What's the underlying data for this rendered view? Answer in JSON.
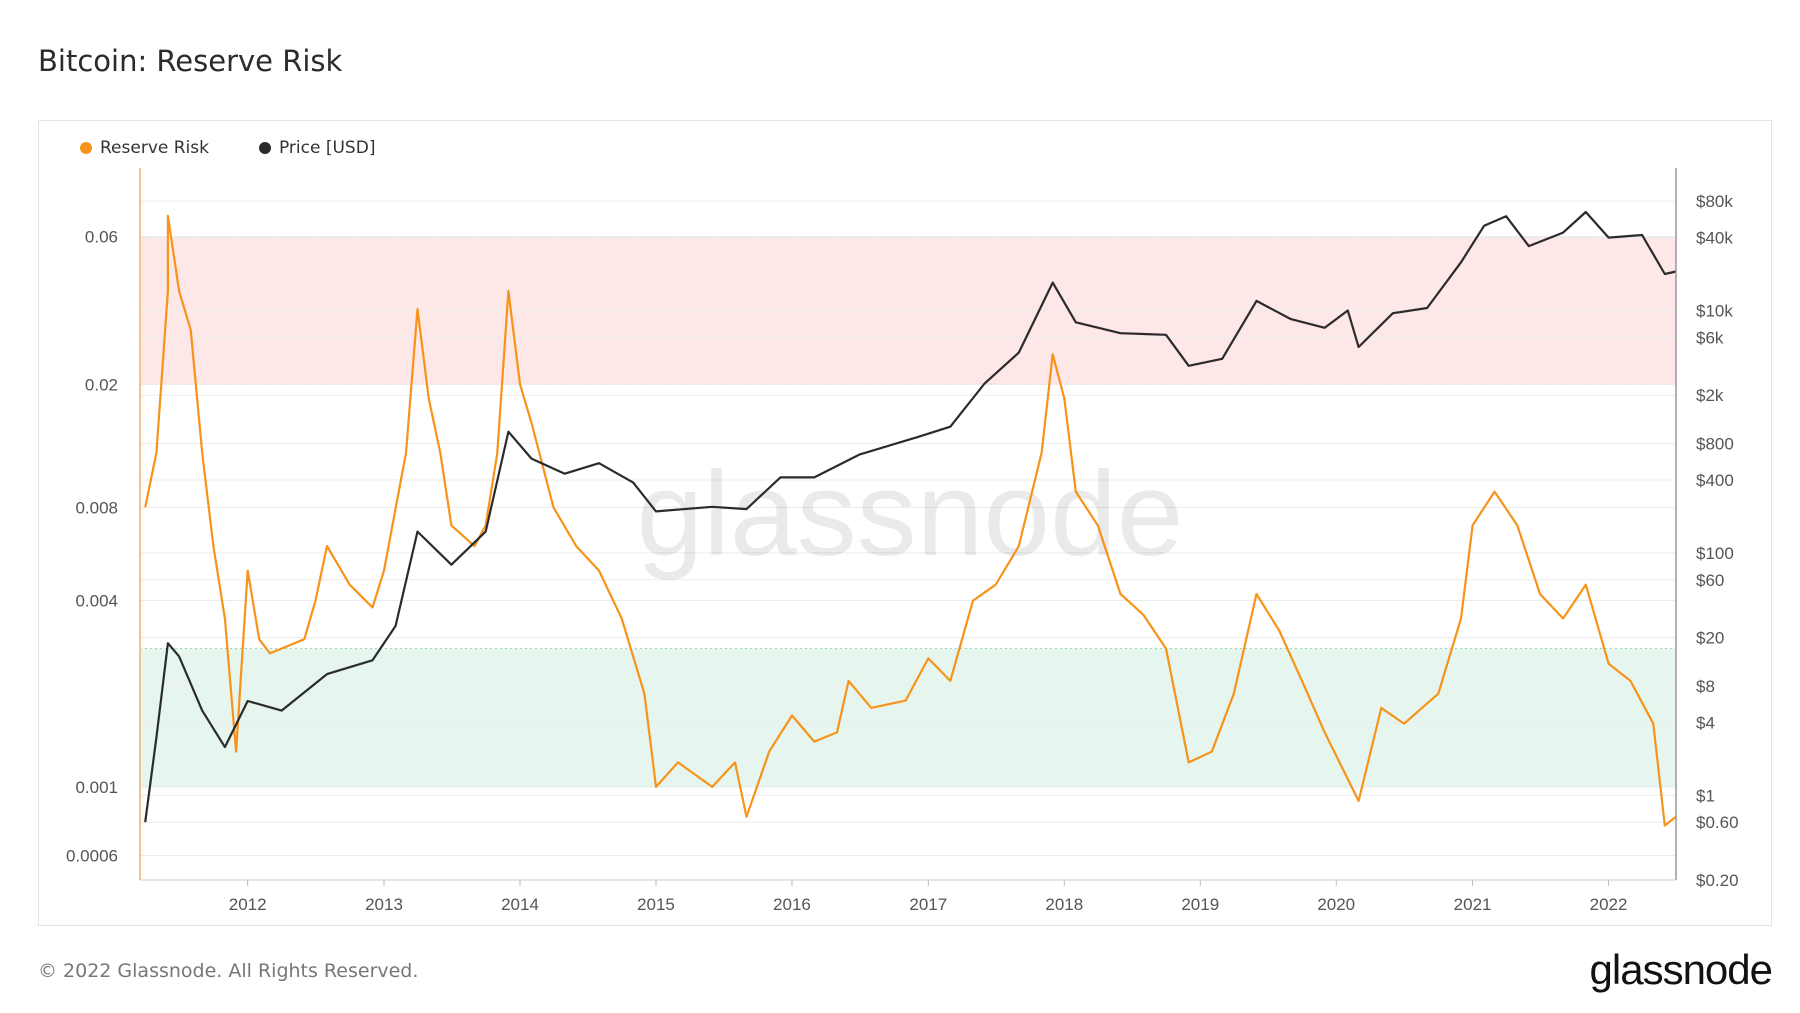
{
  "title": "Bitcoin: Reserve Risk",
  "footer": "© 2022 Glassnode. All Rights Reserved.",
  "logo": "glassnode",
  "watermark": "glassnode",
  "colors": {
    "reserve_risk": "#f7931a",
    "price": "#2b2b2b",
    "high_band": "#fde7e7",
    "low_band": "#e6f6ee",
    "grid": "#ececec"
  },
  "chart_data": {
    "type": "line",
    "title": "Bitcoin: Reserve Risk",
    "x_axis": {
      "ticks": [
        "2012",
        "2013",
        "2014",
        "2015",
        "2016",
        "2017",
        "2018",
        "2019",
        "2020",
        "2021",
        "2022"
      ],
      "range": [
        "2011-04",
        "2022-07"
      ]
    },
    "y_left": {
      "scale": "log",
      "ticks": [
        "0.06",
        "0.02",
        "0.008",
        "0.004",
        "0.001",
        "0.0006"
      ],
      "range": [
        0.0005,
        0.1
      ]
    },
    "y_right": {
      "scale": "log",
      "ticks": [
        "$80k",
        "$40k",
        "$10k",
        "$6k",
        "$2k",
        "$800",
        "$400",
        "$100",
        "$60",
        "$20",
        "$8",
        "$4",
        "$1",
        "$0.60",
        "$0.20"
      ],
      "range": [
        0.2,
        150000
      ]
    },
    "bands": [
      {
        "name": "high",
        "from": 0.02,
        "to": 0.06
      },
      {
        "name": "low",
        "from": 0.001,
        "to": 0.0028
      }
    ],
    "legend": {
      "position": "top-left"
    },
    "series": [
      {
        "name": "Reserve Risk",
        "axis": "left",
        "points": [
          [
            "2011-04",
            0.008
          ],
          [
            "2011-05",
            0.012
          ],
          [
            "2011-06",
            0.04
          ],
          [
            "2011-06",
            0.07
          ],
          [
            "2011-07",
            0.04
          ],
          [
            "2011-08",
            0.03
          ],
          [
            "2011-09",
            0.012
          ],
          [
            "2011-10",
            0.006
          ],
          [
            "2011-11",
            0.0035
          ],
          [
            "2011-12",
            0.0013
          ],
          [
            "2012-01",
            0.005
          ],
          [
            "2012-02",
            0.003
          ],
          [
            "2012-03",
            0.0027
          ],
          [
            "2012-06",
            0.003
          ],
          [
            "2012-07",
            0.004
          ],
          [
            "2012-08",
            0.006
          ],
          [
            "2012-10",
            0.0045
          ],
          [
            "2012-12",
            0.0038
          ],
          [
            "2013-01",
            0.005
          ],
          [
            "2013-03",
            0.012
          ],
          [
            "2013-04",
            0.035
          ],
          [
            "2013-05",
            0.018
          ],
          [
            "2013-06",
            0.012
          ],
          [
            "2013-07",
            0.007
          ],
          [
            "2013-09",
            0.006
          ],
          [
            "2013-10",
            0.007
          ],
          [
            "2013-11",
            0.012
          ],
          [
            "2013-12",
            0.04
          ],
          [
            "2014-01",
            0.02
          ],
          [
            "2014-02",
            0.015
          ],
          [
            "2014-04",
            0.008
          ],
          [
            "2014-06",
            0.006
          ],
          [
            "2014-08",
            0.005
          ],
          [
            "2014-10",
            0.0035
          ],
          [
            "2014-12",
            0.002
          ],
          [
            "2015-01",
            0.001
          ],
          [
            "2015-03",
            0.0012
          ],
          [
            "2015-06",
            0.001
          ],
          [
            "2015-08",
            0.0012
          ],
          [
            "2015-09",
            0.0008
          ],
          [
            "2015-11",
            0.0013
          ],
          [
            "2016-01",
            0.0017
          ],
          [
            "2016-03",
            0.0014
          ],
          [
            "2016-05",
            0.0015
          ],
          [
            "2016-06",
            0.0022
          ],
          [
            "2016-08",
            0.0018
          ],
          [
            "2016-11",
            0.0019
          ],
          [
            "2017-01",
            0.0026
          ],
          [
            "2017-03",
            0.0022
          ],
          [
            "2017-05",
            0.004
          ],
          [
            "2017-07",
            0.0045
          ],
          [
            "2017-09",
            0.006
          ],
          [
            "2017-11",
            0.012
          ],
          [
            "2017-12",
            0.025
          ],
          [
            "2018-01",
            0.018
          ],
          [
            "2018-02",
            0.009
          ],
          [
            "2018-04",
            0.007
          ],
          [
            "2018-06",
            0.0042
          ],
          [
            "2018-08",
            0.0036
          ],
          [
            "2018-10",
            0.0028
          ],
          [
            "2018-12",
            0.0012
          ],
          [
            "2019-02",
            0.0013
          ],
          [
            "2019-04",
            0.002
          ],
          [
            "2019-06",
            0.0042
          ],
          [
            "2019-08",
            0.0032
          ],
          [
            "2019-10",
            0.0022
          ],
          [
            "2019-12",
            0.0015
          ],
          [
            "2020-03",
            0.0009
          ],
          [
            "2020-05",
            0.0018
          ],
          [
            "2020-07",
            0.0016
          ],
          [
            "2020-10",
            0.002
          ],
          [
            "2020-12",
            0.0035
          ],
          [
            "2021-01",
            0.007
          ],
          [
            "2021-03",
            0.009
          ],
          [
            "2021-05",
            0.007
          ],
          [
            "2021-07",
            0.0042
          ],
          [
            "2021-09",
            0.0035
          ],
          [
            "2021-11",
            0.0045
          ],
          [
            "2022-01",
            0.0025
          ],
          [
            "2022-03",
            0.0022
          ],
          [
            "2022-05",
            0.0016
          ],
          [
            "2022-06",
            0.00075
          ],
          [
            "2022-07",
            0.0008
          ]
        ]
      },
      {
        "name": "Price [USD]",
        "axis": "right",
        "points": [
          [
            "2011-04",
            0.6
          ],
          [
            "2011-05",
            3
          ],
          [
            "2011-06",
            18
          ],
          [
            "2011-07",
            14
          ],
          [
            "2011-09",
            5
          ],
          [
            "2011-11",
            2.5
          ],
          [
            "2012-01",
            6
          ],
          [
            "2012-04",
            5
          ],
          [
            "2012-08",
            10
          ],
          [
            "2012-12",
            13
          ],
          [
            "2013-02",
            25
          ],
          [
            "2013-04",
            150
          ],
          [
            "2013-07",
            80
          ],
          [
            "2013-10",
            150
          ],
          [
            "2013-12",
            1000
          ],
          [
            "2014-02",
            600
          ],
          [
            "2014-05",
            450
          ],
          [
            "2014-08",
            550
          ],
          [
            "2014-11",
            380
          ],
          [
            "2015-01",
            220
          ],
          [
            "2015-06",
            240
          ],
          [
            "2015-09",
            230
          ],
          [
            "2015-12",
            420
          ],
          [
            "2016-03",
            420
          ],
          [
            "2016-07",
            650
          ],
          [
            "2016-12",
            900
          ],
          [
            "2017-03",
            1100
          ],
          [
            "2017-06",
            2500
          ],
          [
            "2017-09",
            4500
          ],
          [
            "2017-12",
            17000
          ],
          [
            "2018-02",
            8000
          ],
          [
            "2018-06",
            6500
          ],
          [
            "2018-10",
            6300
          ],
          [
            "2018-12",
            3500
          ],
          [
            "2019-03",
            4000
          ],
          [
            "2019-06",
            12000
          ],
          [
            "2019-09",
            8500
          ],
          [
            "2019-12",
            7200
          ],
          [
            "2020-02",
            10000
          ],
          [
            "2020-03",
            5000
          ],
          [
            "2020-06",
            9500
          ],
          [
            "2020-09",
            10500
          ],
          [
            "2020-12",
            25000
          ],
          [
            "2021-02",
            50000
          ],
          [
            "2021-04",
            60000
          ],
          [
            "2021-06",
            34000
          ],
          [
            "2021-09",
            44000
          ],
          [
            "2021-11",
            65000
          ],
          [
            "2022-01",
            40000
          ],
          [
            "2022-04",
            42000
          ],
          [
            "2022-06",
            20000
          ],
          [
            "2022-07",
            21000
          ]
        ]
      }
    ]
  }
}
